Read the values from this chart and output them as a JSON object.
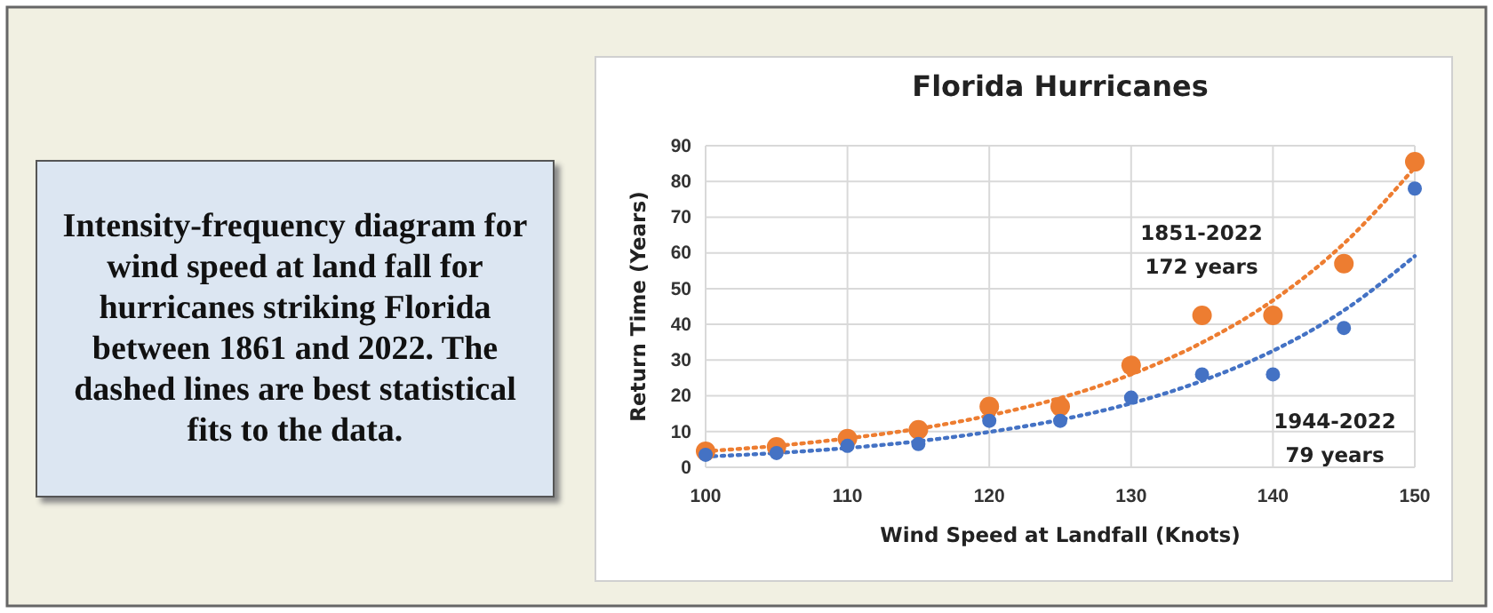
{
  "chart_data": {
    "type": "scatter",
    "title": "Florida Hurricanes",
    "xlabel": "Wind Speed at Landfall (Knots)",
    "ylabel": "Return Time (Years)",
    "x": [
      100,
      105,
      110,
      115,
      120,
      125,
      130,
      135,
      140,
      145,
      150
    ],
    "series": [
      {
        "color": "#ed7d31",
        "values": [
          4.5,
          5.7,
          8,
          10.5,
          17,
          17,
          28.5,
          42.5,
          42.5,
          57,
          85.5
        ]
      },
      {
        "color": "#4472c4",
        "values": [
          3.5,
          4,
          6,
          6.5,
          13,
          13,
          19.5,
          26,
          26,
          39,
          78
        ]
      },
      {
        "type": "line",
        "line_style": "dotted",
        "marker": "none",
        "color": "#ed7d31",
        "values": [
          4.5,
          6.0,
          8.1,
          10.8,
          14.5,
          19.4,
          26.0,
          34.9,
          46.7,
          62.6,
          83.9
        ]
      },
      {
        "type": "line",
        "line_style": "dotted",
        "marker": "none",
        "color": "#4472c4",
        "values": [
          3.0,
          4.0,
          5.4,
          7.3,
          9.9,
          13.3,
          17.9,
          24.2,
          32.6,
          43.9,
          59.1
        ]
      }
    ],
    "xlim": [
      100,
      150
    ],
    "xticks": [
      100,
      110,
      120,
      130,
      140,
      150
    ],
    "ylim": [
      0,
      90
    ],
    "yticks": [
      0,
      10,
      20,
      30,
      40,
      50,
      60,
      70,
      80,
      90
    ],
    "grid": true,
    "marker": "circle",
    "annotations": [
      "Intensity-frequency diagram for wind speed at land fall for hurricanes striking Florida between 1861 and 2022.  The dashed lines are best statistical fits to the data.",
      "1851-2022\n172 years",
      "1944-2022\n79 years"
    ]
  }
}
